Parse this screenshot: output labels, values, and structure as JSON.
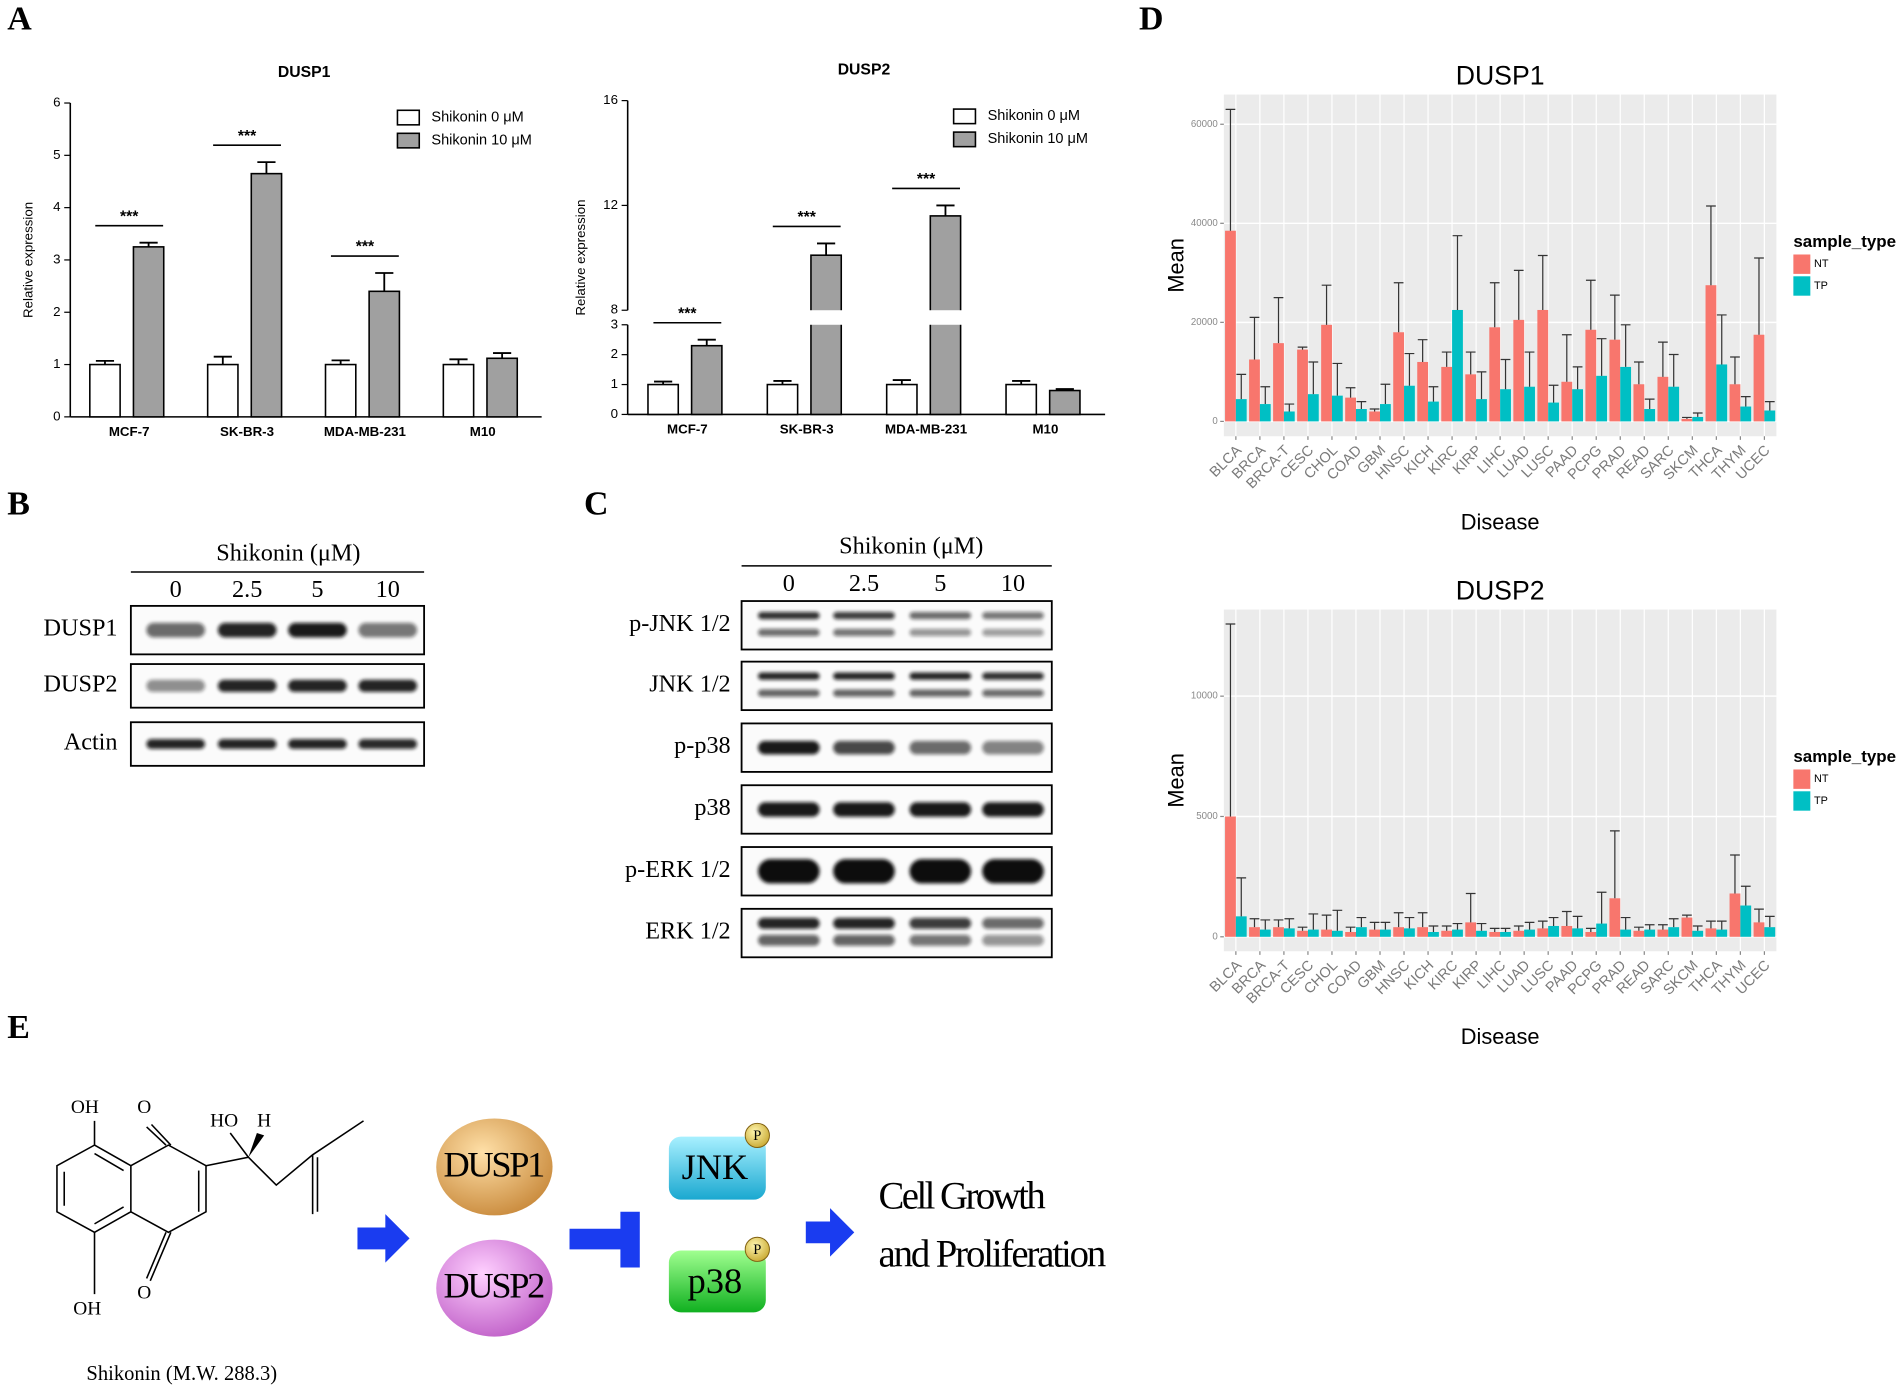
{
  "panels": [
    "A",
    "B",
    "C",
    "D",
    "E"
  ],
  "chart_data": [
    {
      "type": "bar",
      "title": "DUSP1",
      "y_label": "Relative expression",
      "categories": [
        "MCF-7",
        "SK-BR-3",
        "MDA-MB-231",
        "M10"
      ],
      "series": [
        {
          "name": "Shikonin 0 μM",
          "color": "#ffffff",
          "values": [
            1,
            1,
            1,
            1
          ],
          "errors": [
            0.07,
            0.15,
            0.08,
            0.1
          ]
        },
        {
          "name": "Shikonin 10 μM",
          "color": "#a0a0a0",
          "values": [
            3.25,
            4.65,
            2.4,
            1.12
          ],
          "errors": [
            0.08,
            0.22,
            0.35,
            0.1
          ]
        }
      ],
      "annotations": [
        "***",
        "***",
        "***"
      ],
      "ylim": [
        0,
        6
      ],
      "yticks": [
        0,
        1,
        2,
        3,
        4,
        5,
        6
      ],
      "grid": false,
      "legend": "top-right"
    },
    {
      "type": "bar",
      "title": "DUSP2",
      "y_label": "Relative expression",
      "categories": [
        "MCF-7",
        "SK-BR-3",
        "MDA-MB-231",
        "M10"
      ],
      "series": [
        {
          "name": "Shikonin 0 μM",
          "color": "#ffffff",
          "values": [
            1,
            1,
            1,
            1
          ],
          "errors": [
            0.1,
            0.12,
            0.15,
            0.12
          ]
        },
        {
          "name": "Shikonin 10 μM",
          "color": "#a0a0a0",
          "values": [
            2.3,
            10.1,
            11.6,
            0.8
          ],
          "errors": [
            0.2,
            0.45,
            0.4,
            0.05
          ]
        }
      ],
      "annotations": [
        "***",
        "***",
        "***"
      ],
      "ylim": [
        0,
        16
      ],
      "ybreak": [
        3,
        8
      ],
      "yticks": [
        0,
        1,
        2,
        3,
        8,
        12,
        16
      ],
      "grid": false,
      "legend": "top-right"
    },
    {
      "type": "bar",
      "title": "DUSP1",
      "x_label": "Disease",
      "y_label": "Mean",
      "legend_title": "sample_type",
      "legend": "right",
      "grid": true,
      "categories": [
        "BLCA",
        "BRCA",
        "BRCA-T",
        "CESC",
        "CHOL",
        "COAD",
        "GBM",
        "HNSC",
        "KICH",
        "KIRC",
        "KIRP",
        "LIHC",
        "LUAD",
        "LUSC",
        "PAAD",
        "PCPG",
        "PRAD",
        "READ",
        "SARC",
        "SKCM",
        "THCA",
        "THYM",
        "UCEC"
      ],
      "series": [
        {
          "name": "NT",
          "color": "#f8766d",
          "values": [
            38500,
            12500,
            15800,
            14500,
            19500,
            4800,
            2000,
            18000,
            12000,
            11000,
            9500,
            19000,
            20500,
            22500,
            8000,
            18500,
            16500,
            7500,
            9000,
            500,
            27500,
            7500,
            17500
          ],
          "errors": [
            24500,
            8500,
            9200,
            500,
            8000,
            2000,
            500,
            10000,
            4500,
            3000,
            4500,
            9000,
            10000,
            11000,
            9500,
            10000,
            9000,
            4500,
            7000,
            300,
            16000,
            5500,
            15500
          ]
        },
        {
          "name": "TP",
          "color": "#00bfc4",
          "values": [
            4500,
            3500,
            2000,
            5500,
            5200,
            2500,
            3500,
            7200,
            4000,
            22500,
            4500,
            6500,
            7000,
            3800,
            6500,
            9200,
            11000,
            2500,
            7000,
            900,
            11500,
            3000,
            2200
          ],
          "errors": [
            5000,
            3500,
            1500,
            6500,
            6500,
            1500,
            4000,
            6500,
            3000,
            15000,
            5500,
            6000,
            7000,
            3500,
            4500,
            7500,
            8500,
            2000,
            6500,
            800,
            10000,
            2000,
            1800
          ]
        }
      ],
      "ylim": [
        -3000,
        66000
      ],
      "yticks": [
        0,
        20000,
        40000,
        60000
      ]
    },
    {
      "type": "bar",
      "title": "DUSP2",
      "x_label": "Disease",
      "y_label": "Mean",
      "legend_title": "sample_type",
      "legend": "right",
      "grid": true,
      "categories": [
        "BLCA",
        "BRCA",
        "BRCA-T",
        "CESC",
        "CHOL",
        "COAD",
        "GBM",
        "HNSC",
        "KICH",
        "KIRC",
        "KIRP",
        "LIHC",
        "LUAD",
        "LUSC",
        "PAAD",
        "PCPG",
        "PRAD",
        "READ",
        "SARC",
        "SKCM",
        "THCA",
        "THYM",
        "UCEC"
      ],
      "series": [
        {
          "name": "NT",
          "color": "#f8766d",
          "values": [
            5000,
            400,
            400,
            250,
            300,
            200,
            300,
            400,
            400,
            250,
            600,
            200,
            250,
            350,
            450,
            200,
            1600,
            250,
            300,
            800,
            350,
            1800,
            600
          ],
          "errors": [
            8000,
            350,
            300,
            150,
            600,
            200,
            300,
            600,
            600,
            200,
            1200,
            150,
            200,
            300,
            600,
            150,
            2800,
            150,
            200,
            100,
            300,
            1600,
            550
          ]
        },
        {
          "name": "TP",
          "color": "#00bfc4",
          "values": [
            850,
            300,
            350,
            300,
            250,
            400,
            300,
            350,
            200,
            300,
            250,
            200,
            300,
            450,
            350,
            550,
            300,
            300,
            400,
            250,
            300,
            1300,
            400
          ],
          "errors": [
            1600,
            400,
            400,
            650,
            850,
            400,
            300,
            450,
            250,
            250,
            300,
            150,
            300,
            350,
            500,
            1300,
            500,
            200,
            350,
            200,
            350,
            800,
            450
          ]
        }
      ],
      "ylim": [
        -600,
        13600
      ],
      "yticks": [
        0,
        5000,
        10000
      ]
    }
  ],
  "blot_b": {
    "title": "Shikonin (μM)",
    "lanes": [
      "0",
      "2.5",
      "5",
      "10"
    ],
    "rows": [
      "DUSP1",
      "DUSP2",
      "Actin"
    ]
  },
  "blot_c": {
    "title": "Shikonin (μM)",
    "lanes": [
      "0",
      "2.5",
      "5",
      "10"
    ],
    "rows": [
      "p-JNK 1/2",
      "JNK 1/2",
      "p-p38",
      "p38",
      "p-ERK 1/2",
      "ERK 1/2"
    ]
  },
  "diagram": {
    "structure_labels": [
      "OH",
      "O",
      "HO",
      "H",
      "O",
      "OH"
    ],
    "caption": "Shikonin (M.W. 288.3)",
    "nodes": [
      "DUSP1",
      "DUSP2",
      "JNK",
      "p38"
    ],
    "phospho_labels": [
      "P",
      "P"
    ],
    "outcome": [
      "Cell Growth",
      "and Proliferation"
    ]
  }
}
